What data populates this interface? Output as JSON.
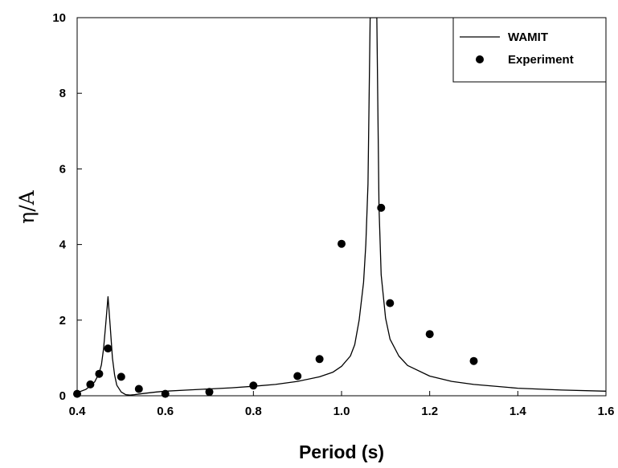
{
  "chart_data": {
    "type": "line",
    "xlabel": "Period (s)",
    "ylabel": "η/A",
    "xlim": [
      0.4,
      1.6
    ],
    "ylim": [
      0,
      10
    ],
    "x_ticks": [
      "0.4",
      "0.6",
      "0.8",
      "1.0",
      "1.2",
      "1.4",
      "1.6"
    ],
    "y_ticks": [
      "0",
      "2",
      "4",
      "6",
      "8",
      "10"
    ],
    "legend_position": "top-right",
    "series": [
      {
        "name": "WAMIT",
        "kind": "line",
        "color": "#000000",
        "x": [
          0.4,
          0.42,
          0.44,
          0.45,
          0.455,
          0.46,
          0.465,
          0.47,
          0.475,
          0.48,
          0.485,
          0.49,
          0.5,
          0.51,
          0.52,
          0.53,
          0.55,
          0.58,
          0.6,
          0.65,
          0.7,
          0.75,
          0.8,
          0.85,
          0.9,
          0.95,
          0.98,
          1.0,
          1.02,
          1.03,
          1.04,
          1.05,
          1.055,
          1.06,
          1.065,
          1.07,
          1.075,
          1.08,
          1.085,
          1.09,
          1.1,
          1.11,
          1.13,
          1.15,
          1.2,
          1.25,
          1.3,
          1.4,
          1.5,
          1.6
        ],
        "y": [
          0.08,
          0.17,
          0.37,
          0.6,
          0.82,
          1.25,
          1.9,
          2.62,
          1.85,
          1.0,
          0.55,
          0.28,
          0.1,
          0.03,
          0.02,
          0.03,
          0.06,
          0.1,
          0.12,
          0.15,
          0.18,
          0.21,
          0.25,
          0.3,
          0.38,
          0.5,
          0.62,
          0.78,
          1.05,
          1.35,
          2.0,
          3.0,
          4.0,
          5.6,
          10.0,
          10.0,
          10.0,
          10.0,
          5.0,
          3.2,
          2.05,
          1.5,
          1.05,
          0.8,
          0.52,
          0.38,
          0.3,
          0.2,
          0.15,
          0.12
        ]
      },
      {
        "name": "Experiment",
        "kind": "scatter",
        "color": "#000000",
        "x": [
          0.4,
          0.43,
          0.45,
          0.47,
          0.5,
          0.54,
          0.6,
          0.7,
          0.8,
          0.9,
          0.95,
          1.0,
          1.09,
          1.11,
          1.2,
          1.3
        ],
        "y": [
          0.05,
          0.3,
          0.58,
          1.25,
          0.5,
          0.18,
          0.05,
          0.1,
          0.27,
          0.52,
          0.97,
          4.02,
          4.97,
          2.45,
          1.63,
          0.92
        ]
      }
    ]
  }
}
